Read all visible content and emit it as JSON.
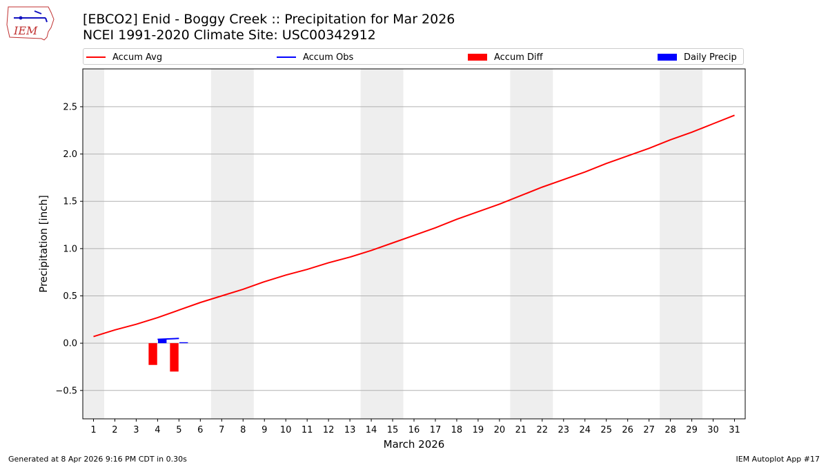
{
  "header": {
    "title_line1": "[EBCO2] Enid - Boggy Creek :: Precipitation for Mar 2026",
    "title_line2": "NCEI 1991-2020 Climate Site: USC00342912",
    "logo_text": "IEM"
  },
  "footer": {
    "generated": "Generated at 8 Apr 2026 9:16 PM CDT in 0.30s",
    "app": "IEM Autoplot App #17"
  },
  "colors": {
    "avg": "#ff0000",
    "obs": "#0000ff",
    "diff": "#ff0000",
    "daily": "#0000ff",
    "weekend_band": "#eeeeee",
    "grid": "#b0b0b0"
  },
  "chart_data": {
    "type": "line",
    "xlabel": "March 2026",
    "ylabel": "Precipitation [inch]",
    "xlim": [
      0.5,
      31.5
    ],
    "ylim": [
      -0.8,
      2.9
    ],
    "yticks": [
      -0.5,
      0.0,
      0.5,
      1.0,
      1.5,
      2.0,
      2.5
    ],
    "ytick_labels": [
      "−0.5",
      "0.0",
      "0.5",
      "1.0",
      "1.5",
      "2.0",
      "2.5"
    ],
    "x": [
      1,
      2,
      3,
      4,
      5,
      6,
      7,
      8,
      9,
      10,
      11,
      12,
      13,
      14,
      15,
      16,
      17,
      18,
      19,
      20,
      21,
      22,
      23,
      24,
      25,
      26,
      27,
      28,
      29,
      30,
      31
    ],
    "x_tick_labels": [
      "1",
      "2",
      "3",
      "4",
      "5",
      "6",
      "7",
      "8",
      "9",
      "10",
      "11",
      "12",
      "13",
      "14",
      "15",
      "16",
      "17",
      "18",
      "19",
      "20",
      "21",
      "22",
      "23",
      "24",
      "25",
      "26",
      "27",
      "28",
      "29",
      "30",
      "31"
    ],
    "grid": "y",
    "legend_position": "top",
    "weekend_bands": [
      [
        0.5,
        1.5
      ],
      [
        6.5,
        8.5
      ],
      [
        13.5,
        15.5
      ],
      [
        20.5,
        22.5
      ],
      [
        27.5,
        29.5
      ]
    ],
    "series": [
      {
        "name": "Accum Avg",
        "kind": "line",
        "x": [
          1,
          2,
          3,
          4,
          5,
          6,
          7,
          8,
          9,
          10,
          11,
          12,
          13,
          14,
          15,
          16,
          17,
          18,
          19,
          20,
          21,
          22,
          23,
          24,
          25,
          26,
          27,
          28,
          29,
          30,
          31
        ],
        "values": [
          0.07,
          0.14,
          0.2,
          0.27,
          0.35,
          0.43,
          0.5,
          0.57,
          0.65,
          0.72,
          0.78,
          0.85,
          0.91,
          0.98,
          1.06,
          1.14,
          1.22,
          1.31,
          1.39,
          1.47,
          1.56,
          1.65,
          1.73,
          1.81,
          1.9,
          1.98,
          2.06,
          2.15,
          2.23,
          2.32,
          2.41
        ]
      },
      {
        "name": "Accum Obs",
        "kind": "line",
        "x": [
          4,
          5
        ],
        "values": [
          0.04,
          0.05
        ]
      },
      {
        "name": "Accum Diff",
        "kind": "bar",
        "x": [
          4,
          5
        ],
        "values": [
          -0.23,
          -0.3
        ]
      },
      {
        "name": "Daily Precip",
        "kind": "bar",
        "x": [
          4,
          5
        ],
        "values": [
          0.04,
          0.01
        ]
      }
    ]
  }
}
